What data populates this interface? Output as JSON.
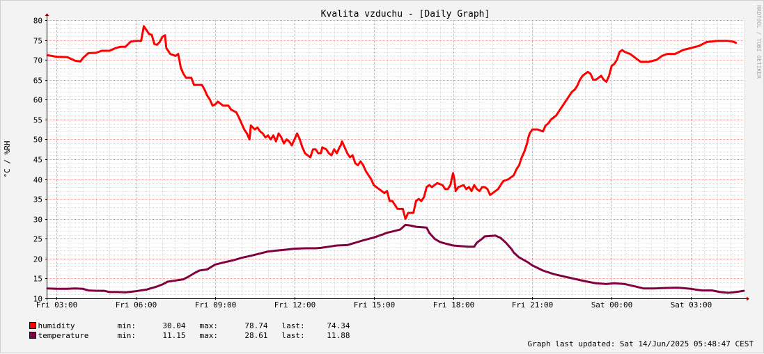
{
  "chart_data": {
    "type": "line",
    "title": "Kvalita vzduchu - [Daily Graph]",
    "ylabel": "°C / %RH",
    "watermark": "RRDTOOL / TOBI OETIKER",
    "ylim": [
      10,
      80
    ],
    "yticks": [
      10,
      15,
      20,
      25,
      30,
      35,
      40,
      45,
      50,
      55,
      60,
      65,
      70,
      75,
      80
    ],
    "xlim": [
      2.65,
      29.0
    ],
    "xticks": [
      {
        "x": 3,
        "label": "Fri 03:00"
      },
      {
        "x": 6,
        "label": "Fri 06:00"
      },
      {
        "x": 9,
        "label": "Fri 09:00"
      },
      {
        "x": 12,
        "label": "Fri 12:00"
      },
      {
        "x": 15,
        "label": "Fri 15:00"
      },
      {
        "x": 18,
        "label": "Fri 18:00"
      },
      {
        "x": 21,
        "label": "Fri 21:00"
      },
      {
        "x": 24,
        "label": "Sat 00:00"
      },
      {
        "x": 27,
        "label": "Sat 03:00"
      }
    ],
    "grid": true,
    "series": [
      {
        "name": "humidity",
        "color": "#ff0000",
        "points": [
          [
            2.65,
            71.2
          ],
          [
            3.0,
            70.8
          ],
          [
            3.4,
            70.7
          ],
          [
            3.7,
            69.8
          ],
          [
            3.9,
            69.6
          ],
          [
            4.0,
            70.5
          ],
          [
            4.2,
            71.7
          ],
          [
            4.5,
            71.8
          ],
          [
            4.7,
            72.3
          ],
          [
            5.0,
            72.3
          ],
          [
            5.2,
            72.9
          ],
          [
            5.4,
            73.3
          ],
          [
            5.6,
            73.3
          ],
          [
            5.8,
            74.6
          ],
          [
            6.0,
            74.8
          ],
          [
            6.2,
            74.8
          ],
          [
            6.3,
            78.5
          ],
          [
            6.4,
            77.5
          ],
          [
            6.5,
            76.5
          ],
          [
            6.6,
            76.3
          ],
          [
            6.7,
            74.0
          ],
          [
            6.8,
            73.8
          ],
          [
            6.9,
            74.5
          ],
          [
            7.0,
            75.8
          ],
          [
            7.1,
            76.2
          ],
          [
            7.15,
            73.0
          ],
          [
            7.3,
            71.5
          ],
          [
            7.5,
            71.0
          ],
          [
            7.6,
            71.5
          ],
          [
            7.7,
            68.0
          ],
          [
            7.8,
            66.5
          ],
          [
            7.9,
            65.5
          ],
          [
            8.1,
            65.5
          ],
          [
            8.2,
            63.7
          ],
          [
            8.5,
            63.7
          ],
          [
            8.6,
            62.5
          ],
          [
            8.7,
            61.0
          ],
          [
            8.8,
            60.0
          ],
          [
            8.9,
            58.5
          ],
          [
            9.0,
            58.8
          ],
          [
            9.1,
            59.5
          ],
          [
            9.3,
            58.5
          ],
          [
            9.5,
            58.5
          ],
          [
            9.6,
            57.5
          ],
          [
            9.8,
            56.8
          ],
          [
            9.9,
            55.5
          ],
          [
            10.0,
            54.0
          ],
          [
            10.1,
            52.5
          ],
          [
            10.2,
            51.5
          ],
          [
            10.3,
            50.0
          ],
          [
            10.35,
            53.5
          ],
          [
            10.5,
            52.5
          ],
          [
            10.6,
            53.0
          ],
          [
            10.7,
            52.0
          ],
          [
            10.8,
            51.5
          ],
          [
            10.9,
            50.5
          ],
          [
            11.0,
            51.0
          ],
          [
            11.1,
            50.0
          ],
          [
            11.2,
            51.0
          ],
          [
            11.3,
            49.5
          ],
          [
            11.4,
            51.5
          ],
          [
            11.5,
            50.5
          ],
          [
            11.6,
            49.0
          ],
          [
            11.7,
            50.0
          ],
          [
            11.8,
            49.5
          ],
          [
            11.9,
            48.5
          ],
          [
            12.1,
            51.5
          ],
          [
            12.2,
            50.0
          ],
          [
            12.3,
            48.0
          ],
          [
            12.4,
            46.5
          ],
          [
            12.5,
            46.0
          ],
          [
            12.6,
            45.5
          ],
          [
            12.7,
            47.5
          ],
          [
            12.8,
            47.5
          ],
          [
            12.9,
            46.5
          ],
          [
            13.0,
            46.5
          ],
          [
            13.05,
            48.0
          ],
          [
            13.2,
            47.5
          ],
          [
            13.3,
            46.5
          ],
          [
            13.4,
            46.0
          ],
          [
            13.5,
            47.5
          ],
          [
            13.6,
            46.5
          ],
          [
            13.7,
            48.0
          ],
          [
            13.75,
            48.5
          ],
          [
            13.8,
            49.5
          ],
          [
            13.9,
            48.0
          ],
          [
            14.0,
            46.5
          ],
          [
            14.1,
            45.5
          ],
          [
            14.2,
            46.0
          ],
          [
            14.3,
            44.0
          ],
          [
            14.4,
            43.5
          ],
          [
            14.5,
            44.5
          ],
          [
            14.6,
            43.5
          ],
          [
            14.7,
            42.0
          ],
          [
            14.8,
            41.0
          ],
          [
            14.9,
            40.0
          ],
          [
            15.0,
            38.5
          ],
          [
            15.2,
            37.5
          ],
          [
            15.3,
            37.0
          ],
          [
            15.4,
            36.5
          ],
          [
            15.5,
            37.0
          ],
          [
            15.6,
            34.5
          ],
          [
            15.7,
            34.5
          ],
          [
            15.8,
            33.5
          ],
          [
            15.9,
            32.5
          ],
          [
            16.1,
            32.5
          ],
          [
            16.2,
            30.0
          ],
          [
            16.3,
            31.5
          ],
          [
            16.5,
            31.5
          ],
          [
            16.6,
            34.5
          ],
          [
            16.7,
            35.0
          ],
          [
            16.8,
            34.5
          ],
          [
            16.9,
            35.5
          ],
          [
            17.0,
            38.0
          ],
          [
            17.1,
            38.5
          ],
          [
            17.2,
            38.0
          ],
          [
            17.3,
            38.5
          ],
          [
            17.4,
            39.0
          ],
          [
            17.6,
            38.5
          ],
          [
            17.7,
            37.5
          ],
          [
            17.8,
            37.5
          ],
          [
            17.9,
            38.5
          ],
          [
            18.0,
            41.5
          ],
          [
            18.05,
            40.0
          ],
          [
            18.1,
            37.0
          ],
          [
            18.2,
            38.0
          ],
          [
            18.4,
            38.5
          ],
          [
            18.5,
            37.5
          ],
          [
            18.6,
            38.0
          ],
          [
            18.7,
            37.0
          ],
          [
            18.8,
            38.5
          ],
          [
            18.9,
            37.5
          ],
          [
            19.0,
            37.0
          ],
          [
            19.1,
            38.0
          ],
          [
            19.2,
            38.0
          ],
          [
            19.3,
            37.5
          ],
          [
            19.4,
            36.0
          ],
          [
            19.5,
            36.5
          ],
          [
            19.7,
            37.5
          ],
          [
            19.8,
            38.5
          ],
          [
            19.9,
            39.5
          ],
          [
            20.1,
            40.0
          ],
          [
            20.3,
            41.0
          ],
          [
            20.4,
            42.5
          ],
          [
            20.5,
            43.5
          ],
          [
            20.6,
            45.5
          ],
          [
            20.7,
            47.0
          ],
          [
            20.8,
            49.0
          ],
          [
            20.85,
            50.5
          ],
          [
            20.9,
            51.5
          ],
          [
            21.0,
            52.5
          ],
          [
            21.2,
            52.5
          ],
          [
            21.4,
            52.0
          ],
          [
            21.5,
            53.5
          ],
          [
            21.6,
            54.0
          ],
          [
            21.7,
            55.0
          ],
          [
            21.8,
            55.5
          ],
          [
            21.9,
            56.0
          ],
          [
            22.0,
            57.0
          ],
          [
            22.1,
            58.0
          ],
          [
            22.2,
            59.0
          ],
          [
            22.3,
            60.0
          ],
          [
            22.4,
            61.0
          ],
          [
            22.5,
            62.0
          ],
          [
            22.6,
            62.5
          ],
          [
            22.7,
            63.5
          ],
          [
            22.8,
            65.0
          ],
          [
            22.9,
            66.0
          ],
          [
            23.0,
            66.5
          ],
          [
            23.1,
            67.0
          ],
          [
            23.2,
            66.5
          ],
          [
            23.3,
            65.0
          ],
          [
            23.4,
            65.0
          ],
          [
            23.5,
            65.5
          ],
          [
            23.6,
            66.0
          ],
          [
            23.7,
            65.0
          ],
          [
            23.8,
            64.5
          ],
          [
            23.9,
            66.0
          ],
          [
            24.0,
            68.5
          ],
          [
            24.1,
            69.0
          ],
          [
            24.2,
            70.0
          ],
          [
            24.25,
            71.0
          ],
          [
            24.3,
            72.0
          ],
          [
            24.4,
            72.5
          ],
          [
            24.5,
            72.0
          ],
          [
            24.7,
            71.5
          ],
          [
            24.9,
            70.5
          ],
          [
            25.1,
            69.5
          ],
          [
            25.4,
            69.5
          ],
          [
            25.7,
            70.0
          ],
          [
            25.9,
            71.0
          ],
          [
            26.1,
            71.5
          ],
          [
            26.4,
            71.5
          ],
          [
            26.7,
            72.5
          ],
          [
            27.0,
            73.0
          ],
          [
            27.3,
            73.5
          ],
          [
            27.6,
            74.5
          ],
          [
            28.0,
            74.8
          ],
          [
            28.4,
            74.8
          ],
          [
            28.6,
            74.6
          ],
          [
            28.7,
            74.3
          ]
        ]
      },
      {
        "name": "temperature",
        "color": "#800040",
        "points": [
          [
            2.65,
            12.5
          ],
          [
            3.0,
            12.4
          ],
          [
            3.4,
            12.4
          ],
          [
            3.7,
            12.5
          ],
          [
            4.0,
            12.4
          ],
          [
            4.2,
            12.0
          ],
          [
            4.5,
            11.9
          ],
          [
            4.8,
            11.9
          ],
          [
            5.0,
            11.6
          ],
          [
            5.3,
            11.6
          ],
          [
            5.6,
            11.5
          ],
          [
            6.0,
            11.8
          ],
          [
            6.4,
            12.2
          ],
          [
            6.8,
            13.0
          ],
          [
            7.0,
            13.5
          ],
          [
            7.2,
            14.2
          ],
          [
            7.5,
            14.5
          ],
          [
            7.8,
            14.8
          ],
          [
            8.0,
            15.5
          ],
          [
            8.2,
            16.3
          ],
          [
            8.4,
            17.0
          ],
          [
            8.7,
            17.3
          ],
          [
            9.0,
            18.5
          ],
          [
            9.3,
            19.0
          ],
          [
            9.7,
            19.6
          ],
          [
            10.0,
            20.2
          ],
          [
            10.4,
            20.8
          ],
          [
            10.7,
            21.3
          ],
          [
            11.0,
            21.8
          ],
          [
            11.3,
            22.0
          ],
          [
            11.6,
            22.2
          ],
          [
            12.0,
            22.5
          ],
          [
            12.4,
            22.6
          ],
          [
            12.8,
            22.6
          ],
          [
            13.0,
            22.7
          ],
          [
            13.3,
            23.0
          ],
          [
            13.6,
            23.3
          ],
          [
            14.0,
            23.4
          ],
          [
            14.3,
            24.0
          ],
          [
            14.6,
            24.6
          ],
          [
            15.0,
            25.3
          ],
          [
            15.3,
            26.0
          ],
          [
            15.5,
            26.5
          ],
          [
            15.8,
            27.0
          ],
          [
            16.0,
            27.3
          ],
          [
            16.2,
            28.5
          ],
          [
            16.4,
            28.3
          ],
          [
            16.6,
            28.0
          ],
          [
            17.0,
            27.8
          ],
          [
            17.1,
            26.5
          ],
          [
            17.3,
            25.0
          ],
          [
            17.5,
            24.2
          ],
          [
            17.7,
            23.8
          ],
          [
            18.0,
            23.3
          ],
          [
            18.2,
            23.2
          ],
          [
            18.6,
            23.0
          ],
          [
            18.8,
            23.0
          ],
          [
            18.9,
            24.0
          ],
          [
            19.1,
            25.0
          ],
          [
            19.2,
            25.6
          ],
          [
            19.6,
            25.8
          ],
          [
            19.8,
            25.2
          ],
          [
            20.0,
            24.0
          ],
          [
            20.2,
            22.5
          ],
          [
            20.3,
            21.5
          ],
          [
            20.5,
            20.3
          ],
          [
            20.8,
            19.2
          ],
          [
            21.0,
            18.3
          ],
          [
            21.4,
            17.0
          ],
          [
            21.8,
            16.1
          ],
          [
            22.2,
            15.5
          ],
          [
            22.6,
            14.9
          ],
          [
            23.0,
            14.3
          ],
          [
            23.4,
            13.8
          ],
          [
            23.8,
            13.6
          ],
          [
            24.1,
            13.8
          ],
          [
            24.5,
            13.6
          ],
          [
            24.9,
            13.0
          ],
          [
            25.2,
            12.5
          ],
          [
            25.6,
            12.5
          ],
          [
            26.0,
            12.6
          ],
          [
            26.5,
            12.7
          ],
          [
            27.0,
            12.4
          ],
          [
            27.4,
            12.0
          ],
          [
            27.8,
            12.0
          ],
          [
            28.1,
            11.6
          ],
          [
            28.4,
            11.4
          ],
          [
            28.6,
            11.5
          ],
          [
            28.8,
            11.7
          ],
          [
            29.0,
            11.9
          ]
        ]
      }
    ]
  },
  "legend": [
    {
      "name": "humidity",
      "color": "#ff0000",
      "min_label": "min:",
      "min": "30.04",
      "max_label": "max:",
      "max": "78.74",
      "last_label": "last:",
      "last": "74.34"
    },
    {
      "name": "temperature",
      "color": "#800040",
      "min_label": "min:",
      "min": "11.15",
      "max_label": "max:",
      "max": "28.61",
      "last_label": "last:",
      "last": "11.88"
    }
  ],
  "updated": "Graph last updated: Sat 14/Jun/2025 05:48:47 CEST"
}
